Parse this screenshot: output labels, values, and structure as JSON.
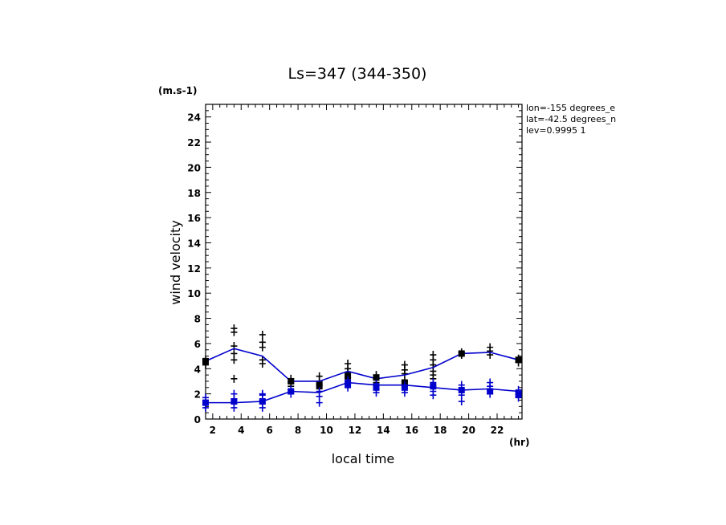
{
  "chart_data": {
    "type": "line",
    "title": "Ls=347 (344-350)",
    "ylabel": "wind velocity",
    "yunit": "(m.s-1)",
    "xlabel": "local time",
    "xunit": "(hr)",
    "xlim": [
      1.5,
      23.75
    ],
    "ylim": [
      0,
      25
    ],
    "xticks": [
      2,
      4,
      6,
      8,
      10,
      12,
      14,
      16,
      18,
      20,
      22
    ],
    "yticks": [
      0,
      2,
      4,
      6,
      8,
      10,
      12,
      14,
      16,
      18,
      20,
      22,
      24
    ],
    "annotations": [
      "lon=-155 degrees_e",
      "lat=-42.5 degrees_n",
      "lev=0.9995 1"
    ],
    "grid": false,
    "line_color": "#0000cc",
    "series": [
      {
        "color": "#000000",
        "x": [
          1.5,
          3.5,
          5.5,
          7.5,
          9.5,
          11.5,
          13.5,
          15.5,
          17.5,
          19.5,
          21.5,
          23.5
        ],
        "values": [
          4.6,
          5.6,
          5.0,
          3.0,
          3.0,
          3.8,
          3.2,
          3.5,
          4.1,
          5.2,
          5.3,
          4.7
        ],
        "scatter": [
          [
            1.5,
            4.3
          ],
          [
            1.5,
            4.7
          ],
          [
            3.5,
            3.2
          ],
          [
            3.5,
            4.7
          ],
          [
            3.5,
            5.2
          ],
          [
            3.5,
            5.8
          ],
          [
            3.5,
            6.9
          ],
          [
            3.5,
            7.2
          ],
          [
            5.5,
            4.4
          ],
          [
            5.5,
            4.7
          ],
          [
            5.5,
            5.7
          ],
          [
            5.5,
            6.1
          ],
          [
            5.5,
            6.7
          ],
          [
            7.5,
            2.6
          ],
          [
            7.5,
            2.9
          ],
          [
            7.5,
            3.2
          ],
          [
            9.5,
            2.4
          ],
          [
            9.5,
            2.7
          ],
          [
            9.5,
            3.0
          ],
          [
            9.5,
            3.4
          ],
          [
            11.5,
            2.9
          ],
          [
            11.5,
            3.3
          ],
          [
            11.5,
            3.7
          ],
          [
            11.5,
            4.0
          ],
          [
            11.5,
            4.4
          ],
          [
            13.5,
            2.6
          ],
          [
            13.5,
            2.9
          ],
          [
            13.5,
            3.2
          ],
          [
            13.5,
            3.5
          ],
          [
            15.5,
            2.6
          ],
          [
            15.5,
            3.0
          ],
          [
            15.5,
            3.6
          ],
          [
            15.5,
            3.9
          ],
          [
            15.5,
            4.3
          ],
          [
            17.5,
            3.2
          ],
          [
            17.5,
            3.5
          ],
          [
            17.5,
            3.8
          ],
          [
            17.5,
            4.3
          ],
          [
            17.5,
            4.7
          ],
          [
            17.5,
            5.1
          ],
          [
            19.5,
            5.1
          ],
          [
            19.5,
            5.3
          ],
          [
            21.5,
            5.1
          ],
          [
            21.5,
            5.4
          ],
          [
            21.5,
            5.7
          ],
          [
            23.5,
            4.5
          ],
          [
            23.5,
            4.8
          ]
        ],
        "squares": [
          [
            1.5,
            4.6
          ],
          [
            7.5,
            3.0
          ],
          [
            9.5,
            2.7
          ],
          [
            11.5,
            3.4
          ],
          [
            13.5,
            3.3
          ],
          [
            15.5,
            2.9
          ],
          [
            19.5,
            5.2
          ],
          [
            23.5,
            4.7
          ]
        ]
      },
      {
        "color": "#0000cc",
        "x": [
          1.5,
          3.5,
          5.5,
          7.5,
          9.5,
          11.5,
          13.5,
          15.5,
          17.5,
          19.5,
          21.5,
          23.5
        ],
        "values": [
          1.3,
          1.3,
          1.4,
          2.2,
          2.1,
          2.9,
          2.7,
          2.7,
          2.5,
          2.3,
          2.4,
          2.2
        ],
        "scatter": [
          [
            1.5,
            0.9
          ],
          [
            1.5,
            1.2
          ],
          [
            1.5,
            1.7
          ],
          [
            3.5,
            0.9
          ],
          [
            3.5,
            1.3
          ],
          [
            3.5,
            1.6
          ],
          [
            3.5,
            2.0
          ],
          [
            5.5,
            0.9
          ],
          [
            5.5,
            1.2
          ],
          [
            5.5,
            1.5
          ],
          [
            5.5,
            1.9
          ],
          [
            5.5,
            2.0
          ],
          [
            7.5,
            2.0
          ],
          [
            7.5,
            2.3
          ],
          [
            9.5,
            1.3
          ],
          [
            9.5,
            1.8
          ],
          [
            9.5,
            2.2
          ],
          [
            11.5,
            2.5
          ],
          [
            11.5,
            2.8
          ],
          [
            11.5,
            3.1
          ],
          [
            13.5,
            2.1
          ],
          [
            13.5,
            2.5
          ],
          [
            13.5,
            2.8
          ],
          [
            15.5,
            2.1
          ],
          [
            15.5,
            2.4
          ],
          [
            15.5,
            2.7
          ],
          [
            17.5,
            1.9
          ],
          [
            17.5,
            2.2
          ],
          [
            17.5,
            2.6
          ],
          [
            17.5,
            2.9
          ],
          [
            19.5,
            1.4
          ],
          [
            19.5,
            1.9
          ],
          [
            19.5,
            2.3
          ],
          [
            19.5,
            2.7
          ],
          [
            21.5,
            2.0
          ],
          [
            21.5,
            2.3
          ],
          [
            21.5,
            2.6
          ],
          [
            21.5,
            2.9
          ],
          [
            23.5,
            1.7
          ],
          [
            23.5,
            2.0
          ],
          [
            23.5,
            2.3
          ]
        ],
        "squares": [
          [
            1.5,
            1.3
          ],
          [
            3.5,
            1.4
          ],
          [
            5.5,
            1.4
          ],
          [
            7.5,
            2.2
          ],
          [
            11.5,
            2.8
          ],
          [
            13.5,
            2.5
          ],
          [
            15.5,
            2.5
          ],
          [
            17.5,
            2.6
          ],
          [
            19.5,
            2.3
          ],
          [
            21.5,
            2.2
          ],
          [
            23.5,
            2.0
          ]
        ]
      }
    ]
  }
}
